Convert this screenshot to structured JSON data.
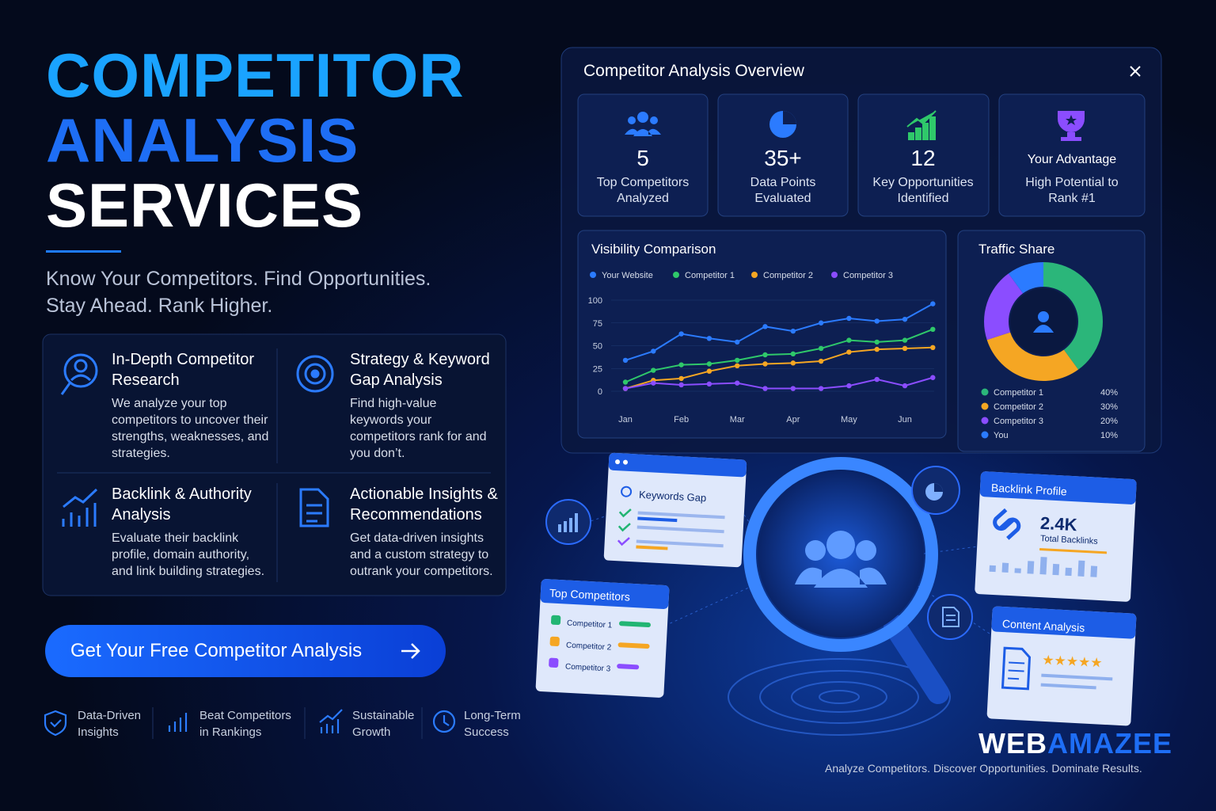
{
  "header": {
    "title": [
      "COMPETITOR",
      "ANALYSIS",
      "SERVICES"
    ],
    "subtitle": [
      "Know Your Competitors. Find Opportunities.",
      "Stay Ahead. Rank Higher."
    ]
  },
  "features": [
    {
      "title": "In-Depth Competitor Research",
      "text": "We analyze your top competitors to uncover their strengths, weaknesses, and strategies."
    },
    {
      "title": "Strategy & Keyword Gap Analysis",
      "text": "Find high-value keywords your competitors rank for and you don’t."
    },
    {
      "title": "Backlink & Authority Analysis",
      "text": "Evaluate their backlink profile, domain authority, and link building strategies."
    },
    {
      "title": "Actionable Insights & Recommendations",
      "text": "Get data-driven insights and a custom strategy to outrank your competitors."
    }
  ],
  "cta": {
    "label": "Get Your Free Competitor Analysis"
  },
  "badges": [
    "Data-Driven Insights",
    "Beat Competitors in Rankings",
    "Sustainable Growth",
    "Long-Term Success"
  ],
  "overview": {
    "title": "Competitor Analysis Overview",
    "stats": [
      {
        "value": "5",
        "label": "Top Competitors Analyzed"
      },
      {
        "value": "35+",
        "label": "Data Points Evaluated"
      },
      {
        "value": "12",
        "label": "Key Opportunities Identified"
      },
      {
        "value": "Your Advantage",
        "label": "High Potential to Rank #1"
      }
    ]
  },
  "chart_data": [
    {
      "type": "line",
      "title": "Visibility Comparison",
      "categories": [
        "Jan",
        null,
        "Feb",
        null,
        "Mar",
        null,
        "Apr",
        null,
        "May",
        null,
        "Jun",
        null
      ],
      "series": [
        {
          "name": "Your Website",
          "color": "#2b7bff",
          "values": [
            34,
            44,
            63,
            58,
            54,
            71,
            66,
            75,
            80,
            77,
            79,
            96
          ]
        },
        {
          "name": "Competitor 1",
          "color": "#2fc86a",
          "values": [
            10,
            23,
            29,
            30,
            34,
            40,
            41,
            47,
            56,
            54,
            56,
            68
          ]
        },
        {
          "name": "Competitor 2",
          "color": "#f5a623",
          "values": [
            3,
            12,
            14,
            22,
            28,
            30,
            31,
            33,
            43,
            46,
            47,
            48
          ]
        },
        {
          "name": "Competitor 3",
          "color": "#8b4dff",
          "values": [
            3,
            9,
            7,
            8,
            9,
            3,
            3,
            3,
            6,
            13,
            6,
            15
          ]
        }
      ],
      "ylim": [
        0,
        100
      ],
      "yticks": [
        0,
        25,
        50,
        75,
        100
      ]
    },
    {
      "type": "pie",
      "title": "Traffic Share",
      "categories": [
        "Competitor 1",
        "Competitor 2",
        "Competitor 3",
        "You"
      ],
      "values": [
        40,
        30,
        20,
        10
      ],
      "value_labels": [
        "40%",
        "30%",
        "20%",
        "10%"
      ],
      "colors": [
        "#2bb67a",
        "#f5a623",
        "#8b4dff",
        "#2b7bff"
      ]
    }
  ],
  "illustration": {
    "keywords_card": "Keywords Gap",
    "top_card": {
      "title": "Top Competitors",
      "items": [
        "Competitor 1",
        "Competitor 2",
        "Competitor 3"
      ]
    },
    "backlink_card": {
      "title": "Backlink Profile",
      "value": "2.4K",
      "label": "Total Backlinks"
    },
    "content_card": "Content Analysis"
  },
  "brand": {
    "name": [
      "WEB",
      "AMAZEE"
    ],
    "tagline": "Analyze Competitors. Discover Opportunities. Dominate Results."
  }
}
